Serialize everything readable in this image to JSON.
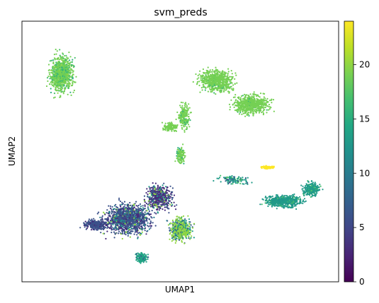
{
  "chart_data": {
    "type": "scatter",
    "title": "svm_preds",
    "xlabel": "UMAP1",
    "ylabel": "UMAP2",
    "x_ticks": "none",
    "y_ticks": "none",
    "grid": false,
    "color_variable": "svm_preds",
    "colormap": "viridis",
    "colorbar": {
      "min": 0,
      "max": 24,
      "ticks": [
        0,
        5,
        10,
        15,
        20
      ],
      "tick_labels": [
        "0",
        "5",
        "10",
        "15",
        "20"
      ],
      "placement": "right"
    },
    "clusters": [
      {
        "region": "top-left",
        "dominant_value": 19,
        "secondary_values": [
          15,
          17
        ]
      },
      {
        "region": "top-right",
        "dominant_value": 19,
        "secondary_values": []
      },
      {
        "region": "middle connecting arc",
        "dominant_value": 19,
        "secondary_values": [
          16
        ]
      },
      {
        "region": "bottom-left",
        "dominant_value": 6,
        "secondary_values": [
          3,
          10,
          13,
          20
        ]
      },
      {
        "region": "bottom-center",
        "dominant_value": 20,
        "secondary_values": [
          13,
          7
        ]
      },
      {
        "region": "bottom-center lower lobe",
        "dominant_value": 14,
        "secondary_values": []
      },
      {
        "region": "right",
        "dominant_value": 13,
        "secondary_values": [
          12,
          17
        ]
      },
      {
        "region": "small band upper right",
        "dominant_value": 24,
        "secondary_values": []
      }
    ]
  }
}
